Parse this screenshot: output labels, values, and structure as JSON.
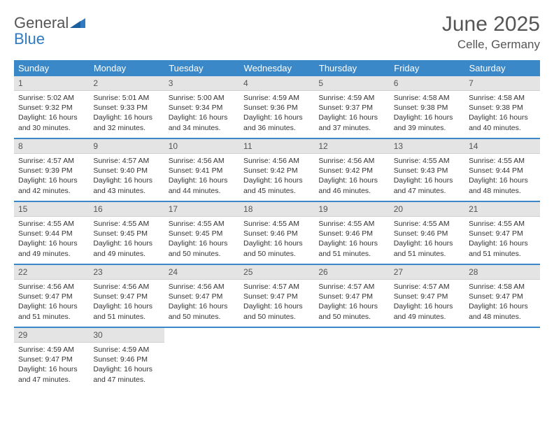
{
  "brand": {
    "word1": "General",
    "word2": "Blue"
  },
  "title": "June 2025",
  "location": "Celle, Germany",
  "colors": {
    "header_bg": "#3b88c8",
    "header_text": "#ffffff",
    "daynum_bg": "#e4e4e4",
    "text": "#333333",
    "title_text": "#555555",
    "brand_blue": "#2f7ac0",
    "separator": "#3b88c8"
  },
  "day_headers": [
    "Sunday",
    "Monday",
    "Tuesday",
    "Wednesday",
    "Thursday",
    "Friday",
    "Saturday"
  ],
  "weeks": [
    [
      {
        "n": "1",
        "sr": "5:02 AM",
        "ss": "9:32 PM",
        "dl": "16 hours and 30 minutes."
      },
      {
        "n": "2",
        "sr": "5:01 AM",
        "ss": "9:33 PM",
        "dl": "16 hours and 32 minutes."
      },
      {
        "n": "3",
        "sr": "5:00 AM",
        "ss": "9:34 PM",
        "dl": "16 hours and 34 minutes."
      },
      {
        "n": "4",
        "sr": "4:59 AM",
        "ss": "9:36 PM",
        "dl": "16 hours and 36 minutes."
      },
      {
        "n": "5",
        "sr": "4:59 AM",
        "ss": "9:37 PM",
        "dl": "16 hours and 37 minutes."
      },
      {
        "n": "6",
        "sr": "4:58 AM",
        "ss": "9:38 PM",
        "dl": "16 hours and 39 minutes."
      },
      {
        "n": "7",
        "sr": "4:58 AM",
        "ss": "9:38 PM",
        "dl": "16 hours and 40 minutes."
      }
    ],
    [
      {
        "n": "8",
        "sr": "4:57 AM",
        "ss": "9:39 PM",
        "dl": "16 hours and 42 minutes."
      },
      {
        "n": "9",
        "sr": "4:57 AM",
        "ss": "9:40 PM",
        "dl": "16 hours and 43 minutes."
      },
      {
        "n": "10",
        "sr": "4:56 AM",
        "ss": "9:41 PM",
        "dl": "16 hours and 44 minutes."
      },
      {
        "n": "11",
        "sr": "4:56 AM",
        "ss": "9:42 PM",
        "dl": "16 hours and 45 minutes."
      },
      {
        "n": "12",
        "sr": "4:56 AM",
        "ss": "9:42 PM",
        "dl": "16 hours and 46 minutes."
      },
      {
        "n": "13",
        "sr": "4:55 AM",
        "ss": "9:43 PM",
        "dl": "16 hours and 47 minutes."
      },
      {
        "n": "14",
        "sr": "4:55 AM",
        "ss": "9:44 PM",
        "dl": "16 hours and 48 minutes."
      }
    ],
    [
      {
        "n": "15",
        "sr": "4:55 AM",
        "ss": "9:44 PM",
        "dl": "16 hours and 49 minutes."
      },
      {
        "n": "16",
        "sr": "4:55 AM",
        "ss": "9:45 PM",
        "dl": "16 hours and 49 minutes."
      },
      {
        "n": "17",
        "sr": "4:55 AM",
        "ss": "9:45 PM",
        "dl": "16 hours and 50 minutes."
      },
      {
        "n": "18",
        "sr": "4:55 AM",
        "ss": "9:46 PM",
        "dl": "16 hours and 50 minutes."
      },
      {
        "n": "19",
        "sr": "4:55 AM",
        "ss": "9:46 PM",
        "dl": "16 hours and 51 minutes."
      },
      {
        "n": "20",
        "sr": "4:55 AM",
        "ss": "9:46 PM",
        "dl": "16 hours and 51 minutes."
      },
      {
        "n": "21",
        "sr": "4:55 AM",
        "ss": "9:47 PM",
        "dl": "16 hours and 51 minutes."
      }
    ],
    [
      {
        "n": "22",
        "sr": "4:56 AM",
        "ss": "9:47 PM",
        "dl": "16 hours and 51 minutes."
      },
      {
        "n": "23",
        "sr": "4:56 AM",
        "ss": "9:47 PM",
        "dl": "16 hours and 51 minutes."
      },
      {
        "n": "24",
        "sr": "4:56 AM",
        "ss": "9:47 PM",
        "dl": "16 hours and 50 minutes."
      },
      {
        "n": "25",
        "sr": "4:57 AM",
        "ss": "9:47 PM",
        "dl": "16 hours and 50 minutes."
      },
      {
        "n": "26",
        "sr": "4:57 AM",
        "ss": "9:47 PM",
        "dl": "16 hours and 50 minutes."
      },
      {
        "n": "27",
        "sr": "4:57 AM",
        "ss": "9:47 PM",
        "dl": "16 hours and 49 minutes."
      },
      {
        "n": "28",
        "sr": "4:58 AM",
        "ss": "9:47 PM",
        "dl": "16 hours and 48 minutes."
      }
    ],
    [
      {
        "n": "29",
        "sr": "4:59 AM",
        "ss": "9:47 PM",
        "dl": "16 hours and 47 minutes."
      },
      {
        "n": "30",
        "sr": "4:59 AM",
        "ss": "9:46 PM",
        "dl": "16 hours and 47 minutes."
      },
      null,
      null,
      null,
      null,
      null
    ]
  ],
  "labels": {
    "sunrise": "Sunrise: ",
    "sunset": "Sunset: ",
    "daylight": "Daylight: "
  }
}
